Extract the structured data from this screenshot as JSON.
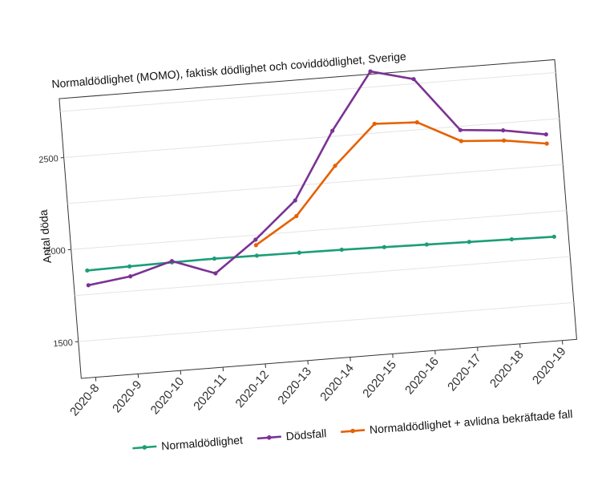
{
  "chart_data": {
    "type": "line",
    "title": "Normaldödlighet (MOMO), faktisk dödlighet och coviddödlighet, Sverige",
    "xlabel": "",
    "ylabel": "Antal döda",
    "categories": [
      "2020-8",
      "2020-9",
      "2020-10",
      "2020-11",
      "2020-12",
      "2020-13",
      "2020-14",
      "2020-15",
      "2020-16",
      "2020-17",
      "2020-18",
      "2020-19"
    ],
    "yticks": [
      1500,
      2000,
      2500
    ],
    "ylim": [
      1300,
      2820
    ],
    "grid": true,
    "legend_position": "bottom",
    "series": [
      {
        "name": "Normaldödlighet",
        "color": "#1b9e77",
        "values": [
          1880,
          1884,
          1888,
          1890,
          1888,
          1886,
          1884,
          1880,
          1876,
          1872,
          1868,
          1864
        ]
      },
      {
        "name": "Dödsfall",
        "color": "#7b3294",
        "values": [
          1800,
          1830,
          1895,
          1810,
          1975,
          2170,
          2530,
          2835,
          2775,
          2480,
          2460,
          2420
        ]
      },
      {
        "name": "Normaldödlighet + avlidna bekräftade fall",
        "color": "#e66101",
        "values": [
          null,
          null,
          null,
          null,
          1945,
          2085,
          2340,
          2550,
          2540,
          2420,
          2405,
          2370
        ]
      }
    ]
  }
}
